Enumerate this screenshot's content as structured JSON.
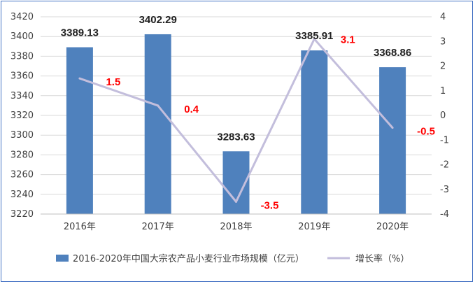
{
  "chart_data": {
    "type": "bar",
    "categories": [
      "2016年",
      "2017年",
      "2018年",
      "2019年",
      "2020年"
    ],
    "series": [
      {
        "name": "2016-2020年中国大宗农产品小麦行业市场规模（亿元）",
        "type": "bar",
        "axis": "left",
        "values": [
          3389.13,
          3402.29,
          3283.63,
          3385.91,
          3368.86
        ],
        "labels": [
          "3389.13",
          "3402.29",
          "3283.63",
          "3385.91",
          "3368.86"
        ],
        "color": "#4f81bd"
      },
      {
        "name": "增长率（%）",
        "type": "line",
        "axis": "right",
        "values": [
          1.5,
          0.4,
          -3.5,
          3.1,
          -0.5
        ],
        "labels": [
          "1.5",
          "0.4",
          "-3.5",
          "3.1",
          "-0.5"
        ],
        "color": "#c3bedc"
      }
    ],
    "y_left": {
      "min": 3220,
      "max": 3420,
      "step": 20,
      "ticks": [
        "3220",
        "3240",
        "3260",
        "3280",
        "3300",
        "3320",
        "3340",
        "3360",
        "3380",
        "3400",
        "3420"
      ]
    },
    "y_right": {
      "min": -4,
      "max": 4,
      "step": 1,
      "ticks": [
        "-4",
        "-3",
        "-2",
        "-1",
        "0",
        "1",
        "2",
        "3",
        "4"
      ]
    },
    "grid": true,
    "legend_position": "bottom"
  }
}
